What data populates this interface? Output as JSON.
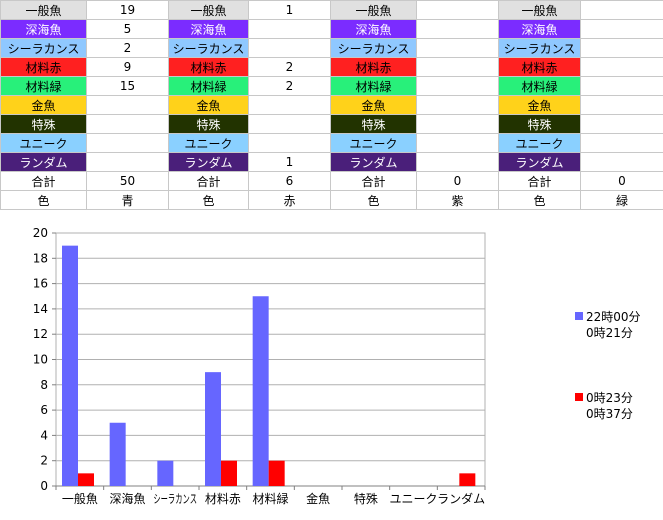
{
  "table": {
    "rows": [
      {
        "cls": "c-ippan",
        "label": "一般魚",
        "vals": [
          "19",
          "1",
          "",
          ""
        ]
      },
      {
        "cls": "c-shinkai",
        "label": "深海魚",
        "vals": [
          "5",
          "",
          "",
          ""
        ]
      },
      {
        "cls": "c-coela",
        "label": "シーラカンス",
        "vals": [
          "2",
          "",
          "",
          ""
        ]
      },
      {
        "cls": "c-aka",
        "label": "材料赤",
        "vals": [
          "9",
          "2",
          "",
          ""
        ]
      },
      {
        "cls": "c-midori",
        "label": "材料緑",
        "vals": [
          "15",
          "2",
          "",
          ""
        ]
      },
      {
        "cls": "c-kin",
        "label": "金魚",
        "vals": [
          "",
          "",
          "",
          ""
        ]
      },
      {
        "cls": "c-tokushu",
        "label": "特殊",
        "vals": [
          "",
          "",
          "",
          ""
        ]
      },
      {
        "cls": "c-unique",
        "label": "ユニーク",
        "vals": [
          "",
          "",
          "",
          ""
        ]
      },
      {
        "cls": "c-random",
        "label": "ランダム",
        "vals": [
          "",
          "1",
          "",
          ""
        ]
      }
    ],
    "total_label": "合計",
    "totals": [
      "50",
      "6",
      "0",
      "0"
    ],
    "color_label": "色",
    "colors": [
      "青",
      "赤",
      "紫",
      "緑"
    ]
  },
  "chart_data": {
    "type": "bar",
    "categories": [
      "一般魚",
      "深海魚",
      "シーラカンス",
      "材料赤",
      "材料緑",
      "金魚",
      "特殊",
      "ユニーク",
      "ランダム"
    ],
    "series": [
      {
        "name": "22時00分\n0時21分",
        "color": "#6666ff",
        "values": [
          19,
          5,
          2,
          9,
          15,
          0,
          0,
          0,
          0
        ]
      },
      {
        "name": "0時23分\n0時37分",
        "color": "#ff0000",
        "values": [
          1,
          0,
          0,
          2,
          2,
          0,
          0,
          0,
          1
        ]
      }
    ],
    "ylim": [
      0,
      20
    ],
    "yticks": [
      0,
      2,
      4,
      6,
      8,
      10,
      12,
      14,
      16,
      18,
      20
    ],
    "grid": true,
    "legend_position": "right"
  }
}
